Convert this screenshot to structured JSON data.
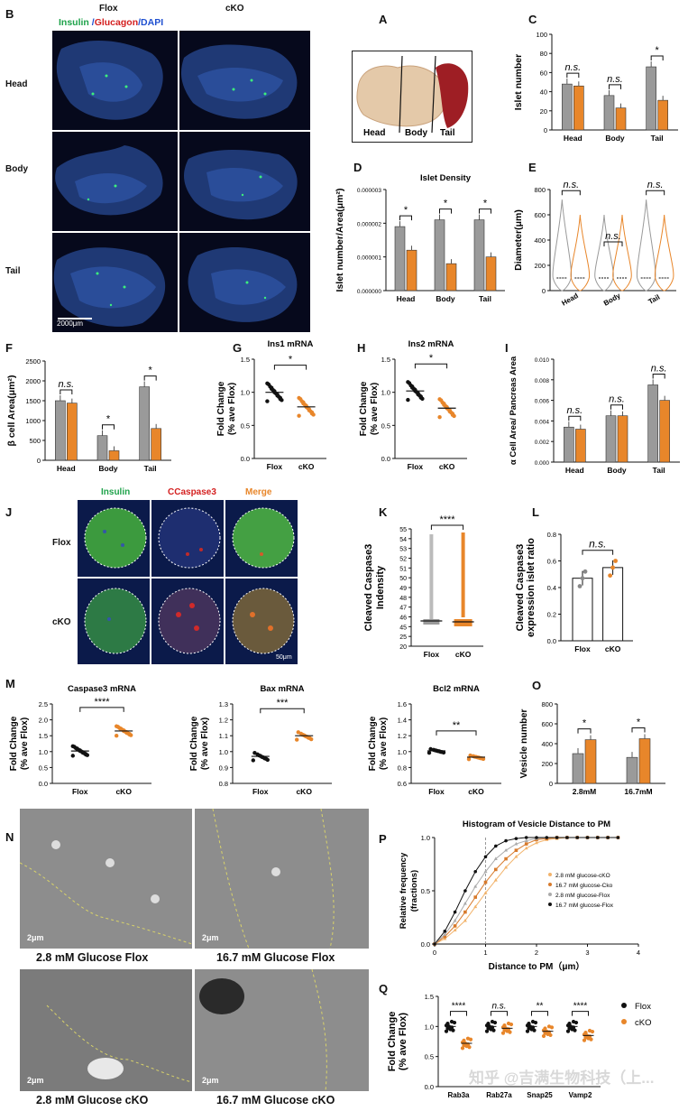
{
  "panels": {
    "A": "A",
    "B": "B",
    "C": "C",
    "D": "D",
    "E": "E",
    "F": "F",
    "G": "G",
    "H": "H",
    "I": "I",
    "J": "J",
    "K": "K",
    "L": "L",
    "M": "M",
    "N": "N",
    "O": "O",
    "P": "P",
    "Q": "Q"
  },
  "panelB": {
    "col_flox": "Flox",
    "col_cko": "cKO",
    "legend_insulin": "Insulin",
    "legend_sep1": " /",
    "legend_glucagon": "Glucagon",
    "legend_sep2": "/",
    "legend_dapi": "DAPI",
    "rows": [
      "Head",
      "Body",
      "Tail"
    ],
    "scale": "2000μm"
  },
  "panelA": {
    "labels": [
      "Head",
      "Body",
      "Tail"
    ]
  },
  "panelJ": {
    "cols": [
      "Insulin",
      "CCaspase3",
      "Merge"
    ],
    "rows": [
      "Flox",
      "cKO"
    ],
    "scale": "50μm"
  },
  "panelN": {
    "scale": "2μm",
    "captions": [
      "2.8 mM Glucose Flox",
      "16.7 mM Glucose Flox",
      "2.8 mM Glucose cKO",
      "16.7 mM Glucose cKO"
    ]
  },
  "watermark": "知乎 @吉满生物科技（上...",
  "colors": {
    "flox": "#9a9a9a",
    "cko": "#e8862a",
    "flox_dot": "#111111"
  },
  "chart_data": [
    {
      "id": "C",
      "type": "bar",
      "ylabel": "Islet number",
      "categories": [
        "Head",
        "Body",
        "Tail"
      ],
      "series": [
        {
          "values": [
            48,
            36,
            66
          ]
        },
        {
          "values": [
            46,
            23,
            31
          ]
        }
      ],
      "ylim": [
        0,
        100
      ],
      "yticks": [
        "0",
        "20",
        "40",
        "60",
        "80",
        "100"
      ],
      "sig": [
        "n.s.",
        "n.s.",
        "*"
      ]
    },
    {
      "id": "D",
      "type": "bar",
      "title": "Islet Density",
      "ylabel": "Islet number/Area(μm²)",
      "categories": [
        "Head",
        "Body",
        "Tail"
      ],
      "series": [
        {
          "values": [
            1.9e-06,
            2.1e-06,
            2.1e-06
          ]
        },
        {
          "values": [
            1.2e-06,
            8e-07,
            1e-06
          ]
        }
      ],
      "ylim": [
        0,
        3e-06
      ],
      "yticks": [
        "0.000000",
        "0.000001",
        "0.000002",
        "0.000003"
      ],
      "sig": [
        "*",
        "*",
        "*"
      ]
    },
    {
      "id": "E",
      "type": "violin",
      "ylabel": "Diameter(μm)",
      "categories": [
        "Head",
        "Body",
        "Tail"
      ],
      "ylim": [
        0,
        800
      ],
      "yticks": [
        "0",
        "200",
        "400",
        "600",
        "800"
      ],
      "sig": [
        "n.s.",
        "n.s.",
        "n.s."
      ]
    },
    {
      "id": "F",
      "type": "bar",
      "ylabel": "β cell Area(μm²)",
      "categories": [
        "Head",
        "Body",
        "Tail"
      ],
      "series": [
        {
          "values": [
            1500,
            620,
            1850
          ]
        },
        {
          "values": [
            1440,
            240,
            800
          ]
        }
      ],
      "ylim": [
        0,
        2500
      ],
      "yticks": [
        "0",
        "500",
        "1000",
        "1500",
        "2000",
        "2500"
      ],
      "sig": [
        "n.s.",
        "*",
        "*"
      ]
    },
    {
      "id": "G",
      "type": "scatter",
      "title": "Ins1 mRNA",
      "ylabel": "Fold Change",
      "ylabel2": "(% ave Flox)",
      "categories": [
        "Flox",
        "cKO"
      ],
      "means": [
        1.0,
        0.78
      ],
      "ylim": [
        0,
        1.5
      ],
      "yticks": [
        "0.0",
        "0.5",
        "1.0",
        "1.5"
      ],
      "sig": [
        "*"
      ]
    },
    {
      "id": "H",
      "type": "scatter",
      "title": "Ins2 mRNA",
      "ylabel": "Fold Change",
      "ylabel2": "(% ave Flox)",
      "categories": [
        "Flox",
        "cKO"
      ],
      "means": [
        1.02,
        0.76
      ],
      "ylim": [
        0,
        1.5
      ],
      "yticks": [
        "0.0",
        "0.5",
        "1.0",
        "1.5"
      ],
      "sig": [
        "*"
      ]
    },
    {
      "id": "I",
      "type": "bar",
      "ylabel": "α Cell Area/ Pancreas Area",
      "categories": [
        "Head",
        "Body",
        "Tail"
      ],
      "series": [
        {
          "values": [
            0.0034,
            0.0045,
            0.0075
          ]
        },
        {
          "values": [
            0.0032,
            0.0045,
            0.006
          ]
        }
      ],
      "ylim": [
        0,
        0.01
      ],
      "yticks": [
        "0.000",
        "0.002",
        "0.004",
        "0.006",
        "0.008",
        "0.010"
      ],
      "sig": [
        "n.s.",
        "n.s.",
        "n.s."
      ]
    },
    {
      "id": "K",
      "type": "scatter",
      "ylabel": "Cleaved Caspase3",
      "ylabel2": "Indensity",
      "categories": [
        "Flox",
        "cKO"
      ],
      "yticks": [
        "20",
        "25",
        "45",
        "46",
        "47",
        "48",
        "49",
        "50",
        "51",
        "52",
        "53",
        "54",
        "55"
      ],
      "sig": [
        "****"
      ]
    },
    {
      "id": "L",
      "type": "bar",
      "ylabel": "Cleaved Caspase3",
      "ylabel2": "expression  islet ratio",
      "categories": [
        "Flox",
        "cKO"
      ],
      "values": [
        0.47,
        0.55
      ],
      "ylim": [
        0,
        0.8
      ],
      "yticks": [
        "0.0",
        "0.2",
        "0.4",
        "0.6",
        "0.8"
      ],
      "sig": [
        "n.s."
      ]
    },
    {
      "id": "M1",
      "type": "scatter",
      "title": "Caspase3 mRNA",
      "ylabel": "Fold Change",
      "ylabel2": "(% ave Flox)",
      "categories": [
        "Flox",
        "cKO"
      ],
      "means": [
        1.02,
        1.65
      ],
      "ylim": [
        0,
        2.5
      ],
      "yticks": [
        "0.0",
        "0.5",
        "1.0",
        "1.5",
        "2.0",
        "2.5"
      ],
      "sig": [
        "****"
      ]
    },
    {
      "id": "M2",
      "type": "scatter",
      "title": "Bax mRNA",
      "ylabel": "Fold Change",
      "ylabel2": "(% ave Flox)",
      "categories": [
        "Flox",
        "cKO"
      ],
      "means": [
        0.97,
        1.1
      ],
      "ylim": [
        0.8,
        1.3
      ],
      "yticks": [
        "0.8",
        "0.9",
        "1.0",
        "1.1",
        "1.2",
        "1.3"
      ],
      "sig": [
        "***"
      ]
    },
    {
      "id": "M3",
      "type": "scatter",
      "title": "Bcl2 mRNA",
      "ylabel": "Fold Change",
      "ylabel2": "(% ave Flox)",
      "categories": [
        "Flox",
        "cKO"
      ],
      "means": [
        1.01,
        0.93
      ],
      "ylim": [
        0.6,
        1.6
      ],
      "yticks": [
        "0.6",
        "0.8",
        "1.0",
        "1.2",
        "1.4",
        "1.6"
      ],
      "sig": [
        "**"
      ]
    },
    {
      "id": "O",
      "type": "bar",
      "ylabel": "Vesicle number",
      "categories": [
        "2.8mM",
        "16.7mM"
      ],
      "series": [
        {
          "values": [
            300,
            262
          ]
        },
        {
          "values": [
            440,
            450
          ]
        }
      ],
      "ylim": [
        0,
        800
      ],
      "yticks": [
        "0",
        "200",
        "400",
        "600",
        "800"
      ],
      "sig": [
        "*",
        "*"
      ]
    },
    {
      "id": "P",
      "type": "line",
      "title": "Histogram of Vesicle Distance to PM",
      "ylabel": "Relative frequency",
      "ylabel2": "(fractions)",
      "xlabel": "Distance to PM（μm）",
      "xlim": [
        0,
        4
      ],
      "ylim": [
        0,
        1
      ],
      "xticks": [
        "0",
        "1",
        "2",
        "3",
        "4"
      ],
      "yticks": [
        "0.0",
        "0.5",
        "1.0"
      ],
      "series": [
        {
          "name": "2.8 mM glucose-cKO",
          "x": [
            0,
            0.2,
            0.4,
            0.6,
            0.8,
            1.0,
            1.2,
            1.4,
            1.6,
            1.8,
            2.0,
            2.2,
            2.4,
            2.6,
            2.8,
            3.0,
            3.2,
            3.4,
            3.6
          ],
          "values": [
            0,
            0.05,
            0.13,
            0.22,
            0.35,
            0.48,
            0.6,
            0.72,
            0.82,
            0.9,
            0.95,
            0.98,
            0.99,
            1,
            1,
            1,
            1,
            1,
            1
          ]
        },
        {
          "name": "16.7 mM glucose-Cko",
          "x": [
            0,
            0.2,
            0.4,
            0.6,
            0.8,
            1.0,
            1.2,
            1.4,
            1.6,
            1.8,
            2.0,
            2.2,
            2.4,
            2.6,
            2.8,
            3.0,
            3.2,
            3.4,
            3.6
          ],
          "values": [
            0,
            0.07,
            0.17,
            0.3,
            0.44,
            0.58,
            0.7,
            0.8,
            0.88,
            0.94,
            0.98,
            0.99,
            1,
            1,
            1,
            1,
            1,
            1,
            1
          ]
        },
        {
          "name": "2.8 mM glucose-Flox",
          "x": [
            0,
            0.2,
            0.4,
            0.6,
            0.8,
            1.0,
            1.2,
            1.4,
            1.6,
            1.8,
            2.0,
            2.2,
            2.4,
            2.6,
            2.8,
            3.0,
            3.2,
            3.4,
            3.6
          ],
          "values": [
            0,
            0.09,
            0.22,
            0.38,
            0.54,
            0.68,
            0.8,
            0.88,
            0.94,
            0.97,
            0.99,
            1,
            1,
            1,
            1,
            1,
            1,
            1,
            1
          ]
        },
        {
          "name": "16.7 mM glucose-Flox",
          "x": [
            0,
            0.2,
            0.4,
            0.6,
            0.8,
            1.0,
            1.2,
            1.4,
            1.6,
            1.8,
            2.0,
            2.2,
            2.4,
            2.6,
            2.8,
            3.0,
            3.2,
            3.4,
            3.6
          ],
          "values": [
            0,
            0.12,
            0.3,
            0.5,
            0.68,
            0.82,
            0.92,
            0.97,
            0.99,
            1,
            1,
            1,
            1,
            1,
            1,
            1,
            1,
            1,
            1
          ]
        }
      ]
    },
    {
      "id": "Q",
      "type": "scatter",
      "ylabel": "Fold Change",
      "ylabel2": "(% ave Flox)",
      "categories": [
        "Rab3a",
        "Rab27a",
        "Snap25",
        "Vamp2"
      ],
      "series": [
        {
          "name": "Flox",
          "means": [
            1.0,
            1.0,
            1.0,
            1.0
          ]
        },
        {
          "name": "cKO",
          "means": [
            0.72,
            0.97,
            0.92,
            0.85
          ]
        }
      ],
      "ylim": [
        0,
        1.5
      ],
      "yticks": [
        "0.0",
        "0.5",
        "1.0",
        "1.5"
      ],
      "sig": [
        "****",
        "n.s.",
        "**",
        "****"
      ]
    }
  ]
}
